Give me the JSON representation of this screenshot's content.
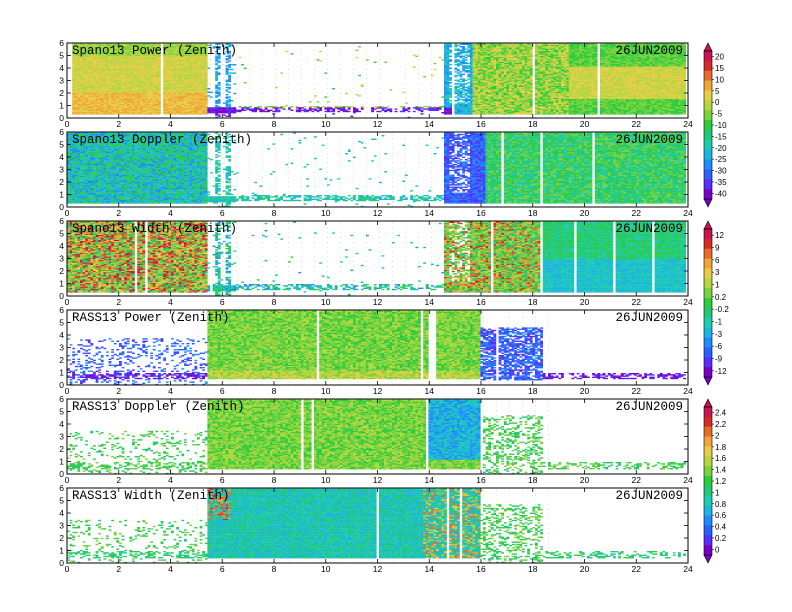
{
  "chart_data": {
    "type": "heatmap",
    "date": "26JUN2009",
    "x_range": [
      0,
      24
    ],
    "y_range": [
      0,
      6
    ],
    "x_ticks": [
      0,
      2,
      4,
      6,
      8,
      10,
      12,
      14,
      16,
      18,
      20,
      22,
      24
    ],
    "y_ticks": [
      0,
      1,
      2,
      3,
      4,
      5,
      6
    ],
    "panels": [
      {
        "title": "Spano13 Power (Zenith)",
        "colorbar": "power",
        "kind": "spano-power"
      },
      {
        "title": "Spano13 Doppler (Zenith)",
        "colorbar": "doppler",
        "kind": "spano-doppler"
      },
      {
        "title": "Spano13 Width (Zenith)",
        "colorbar": "width",
        "kind": "spano-width"
      },
      {
        "title": "RASS13 Power (Zenith)",
        "colorbar": "width",
        "kind": "rass-power"
      },
      {
        "title": "RASS13 Doppler (Zenith)",
        "colorbar": "rass",
        "kind": "rass-doppler"
      },
      {
        "title": "RASS13 Width (Zenith)",
        "colorbar": "rass",
        "kind": "rass-width"
      }
    ],
    "colorbars": {
      "power": {
        "labels": [
          "20",
          "15",
          "10",
          "5",
          "0",
          "-5",
          "-10",
          "-15",
          "-20",
          "-25",
          "-30",
          "-35",
          "-40"
        ]
      },
      "width": {
        "labels": [
          "12",
          "9",
          "6",
          "3",
          "1",
          "0.2",
          "-0.2",
          "-1",
          "-3",
          "-6",
          "-9",
          "-12"
        ]
      },
      "rass": {
        "labels": [
          "2.4",
          "2.2",
          "2",
          "1.8",
          "1.6",
          "1.4",
          "1.2",
          "1",
          "0.8",
          "0.6",
          "0.4",
          "0.2",
          "0"
        ]
      }
    },
    "palette": [
      "#7a00c8",
      "#5a2cff",
      "#2a60ff",
      "#1e8cff",
      "#1cb4e0",
      "#1ecdb0",
      "#22c878",
      "#2ecc3c",
      "#7ad23c",
      "#b4d640",
      "#e8cc46",
      "#f0a636",
      "#e86a2a",
      "#d42a28",
      "#c81450"
    ]
  }
}
